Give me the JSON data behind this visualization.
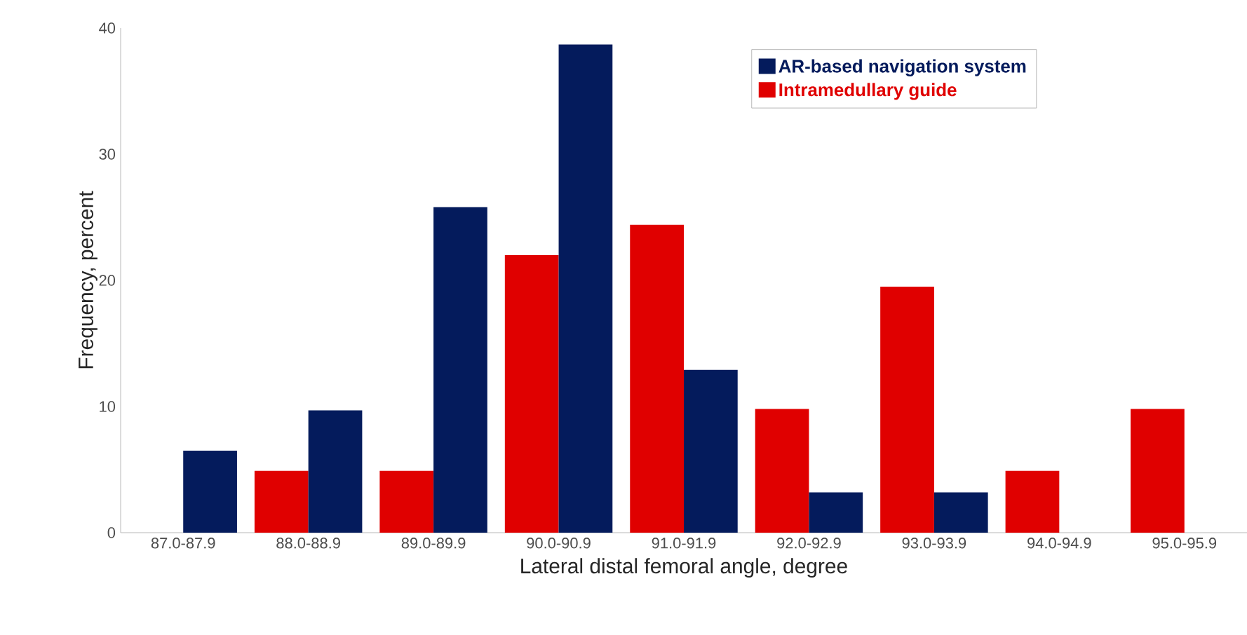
{
  "chart_data": {
    "type": "bar",
    "xlabel": "Lateral distal femoral angle, degree",
    "ylabel": "Frequency, percent",
    "categories": [
      "87.0-87.9",
      "88.0-88.9",
      "89.0-89.9",
      "90.0-90.9",
      "91.0-91.9",
      "92.0-92.9",
      "93.0-93.9",
      "94.0-94.9",
      "95.0-95.9"
    ],
    "series": [
      {
        "name": "AR-based navigation system",
        "color": "#041b5c",
        "values": [
          6.5,
          9.7,
          25.8,
          38.7,
          12.9,
          3.2,
          3.2,
          0,
          0
        ]
      },
      {
        "name": "Intramedullary guide",
        "color": "#e00000",
        "values": [
          0,
          4.9,
          4.9,
          22.0,
          24.4,
          9.8,
          19.5,
          4.9,
          9.8
        ]
      }
    ],
    "ylim": [
      0,
      40
    ],
    "yticks": [
      0,
      10,
      20,
      30,
      40
    ],
    "legend": "top right"
  }
}
